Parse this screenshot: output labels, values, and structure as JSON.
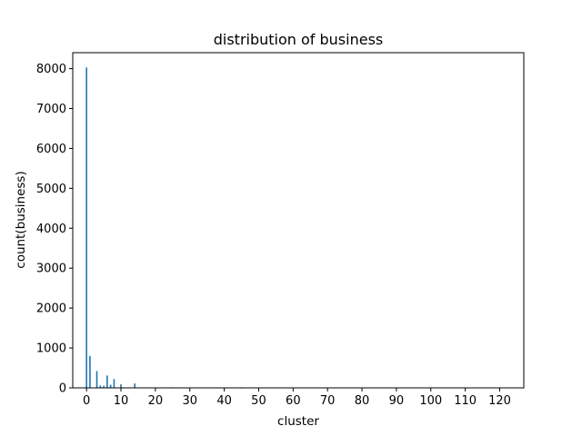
{
  "chart_data": {
    "type": "bar",
    "title": "distribution of business",
    "xlabel": "cluster",
    "ylabel": "count(business)",
    "xlim": [
      -4,
      127
    ],
    "ylim": [
      0,
      8400
    ],
    "xticks": [
      0,
      10,
      20,
      30,
      40,
      50,
      60,
      70,
      80,
      90,
      100,
      110,
      120
    ],
    "yticks": [
      0,
      1000,
      2000,
      3000,
      4000,
      5000,
      6000,
      7000,
      8000
    ],
    "grid": false,
    "bar_color": "#1f77b4",
    "x": [
      0,
      1,
      3,
      4,
      5,
      6,
      7,
      8,
      10,
      14,
      25,
      26,
      45,
      49
    ],
    "values": [
      8030,
      800,
      420,
      60,
      50,
      310,
      80,
      220,
      90,
      110,
      15,
      12,
      15,
      10
    ]
  }
}
